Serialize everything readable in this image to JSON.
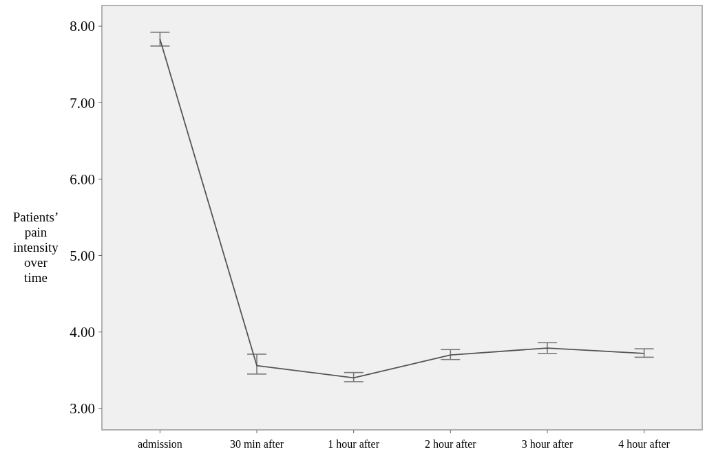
{
  "chart_data": {
    "type": "line",
    "ylabel": "Patients’ pain intensity over time",
    "categories": [
      "admission",
      "30 min after",
      "1 hour after",
      "2 hour after",
      "3 hour after",
      "4 hour after"
    ],
    "series": [
      {
        "color": "#555555",
        "values": [
          7.83,
          3.56,
          3.4,
          3.7,
          3.79,
          3.72
        ],
        "errors": [
          [
            7.74,
            7.92
          ],
          [
            3.45,
            3.71
          ],
          [
            3.35,
            3.47
          ],
          [
            3.64,
            3.77
          ],
          [
            3.72,
            3.86
          ],
          [
            3.67,
            3.78
          ]
        ]
      }
    ],
    "ylim": [
      2.72,
      8.27
    ],
    "yticks": [
      {
        "value": 3,
        "label": "3.00"
      },
      {
        "value": 4,
        "label": "4.00"
      },
      {
        "value": 5,
        "label": "5.00"
      },
      {
        "value": 6,
        "label": "6.00"
      },
      {
        "value": 7,
        "label": "7.00"
      },
      {
        "value": 8,
        "label": "8.00"
      }
    ],
    "marker": "none",
    "line_style": "solid",
    "grid": false
  }
}
